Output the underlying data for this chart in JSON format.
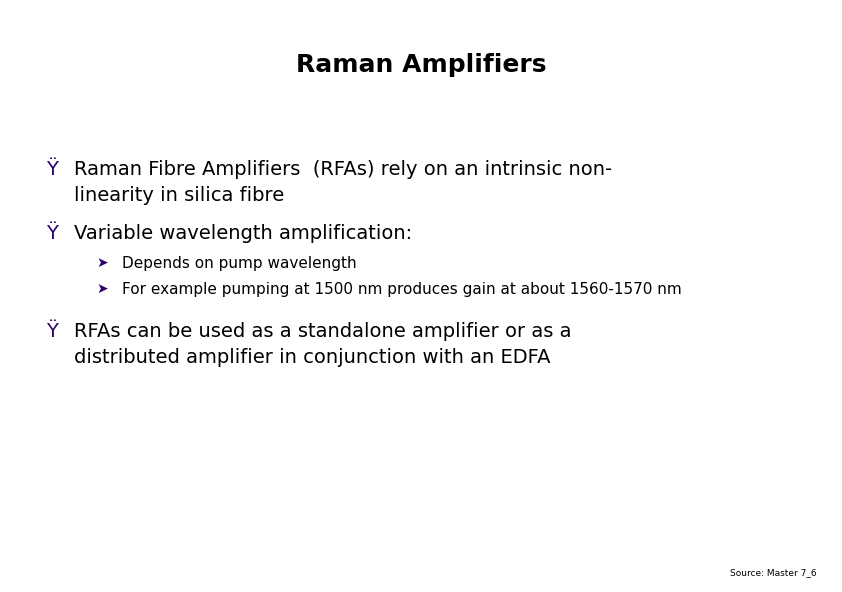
{
  "title": "Raman Amplifiers",
  "title_fontsize": 18,
  "title_fontweight": "bold",
  "background_color": "#ffffff",
  "text_color": "#000000",
  "bullet_color": "#2d0070",
  "bullet_char": "Ÿ",
  "sub_bullet_char": "➤",
  "bullet1_line1": "Raman Fibre Amplifiers  (RFAs) rely on an intrinsic non-",
  "bullet1_line2": "linearity in silica fibre",
  "bullet2": "Variable wavelength amplification:",
  "sub_bullet1": "Depends on pump wavelength",
  "sub_bullet2": "For example pumping at 1500 nm produces gain at about 1560-1570 nm",
  "bullet3_line1": "RFAs can be used as a standalone amplifier or as a",
  "bullet3_line2": "distributed amplifier in conjunction with an EDFA",
  "source_text": "Source: Master 7_6",
  "source_fontsize": 6.5,
  "main_fontsize": 14,
  "sub_fontsize": 11
}
